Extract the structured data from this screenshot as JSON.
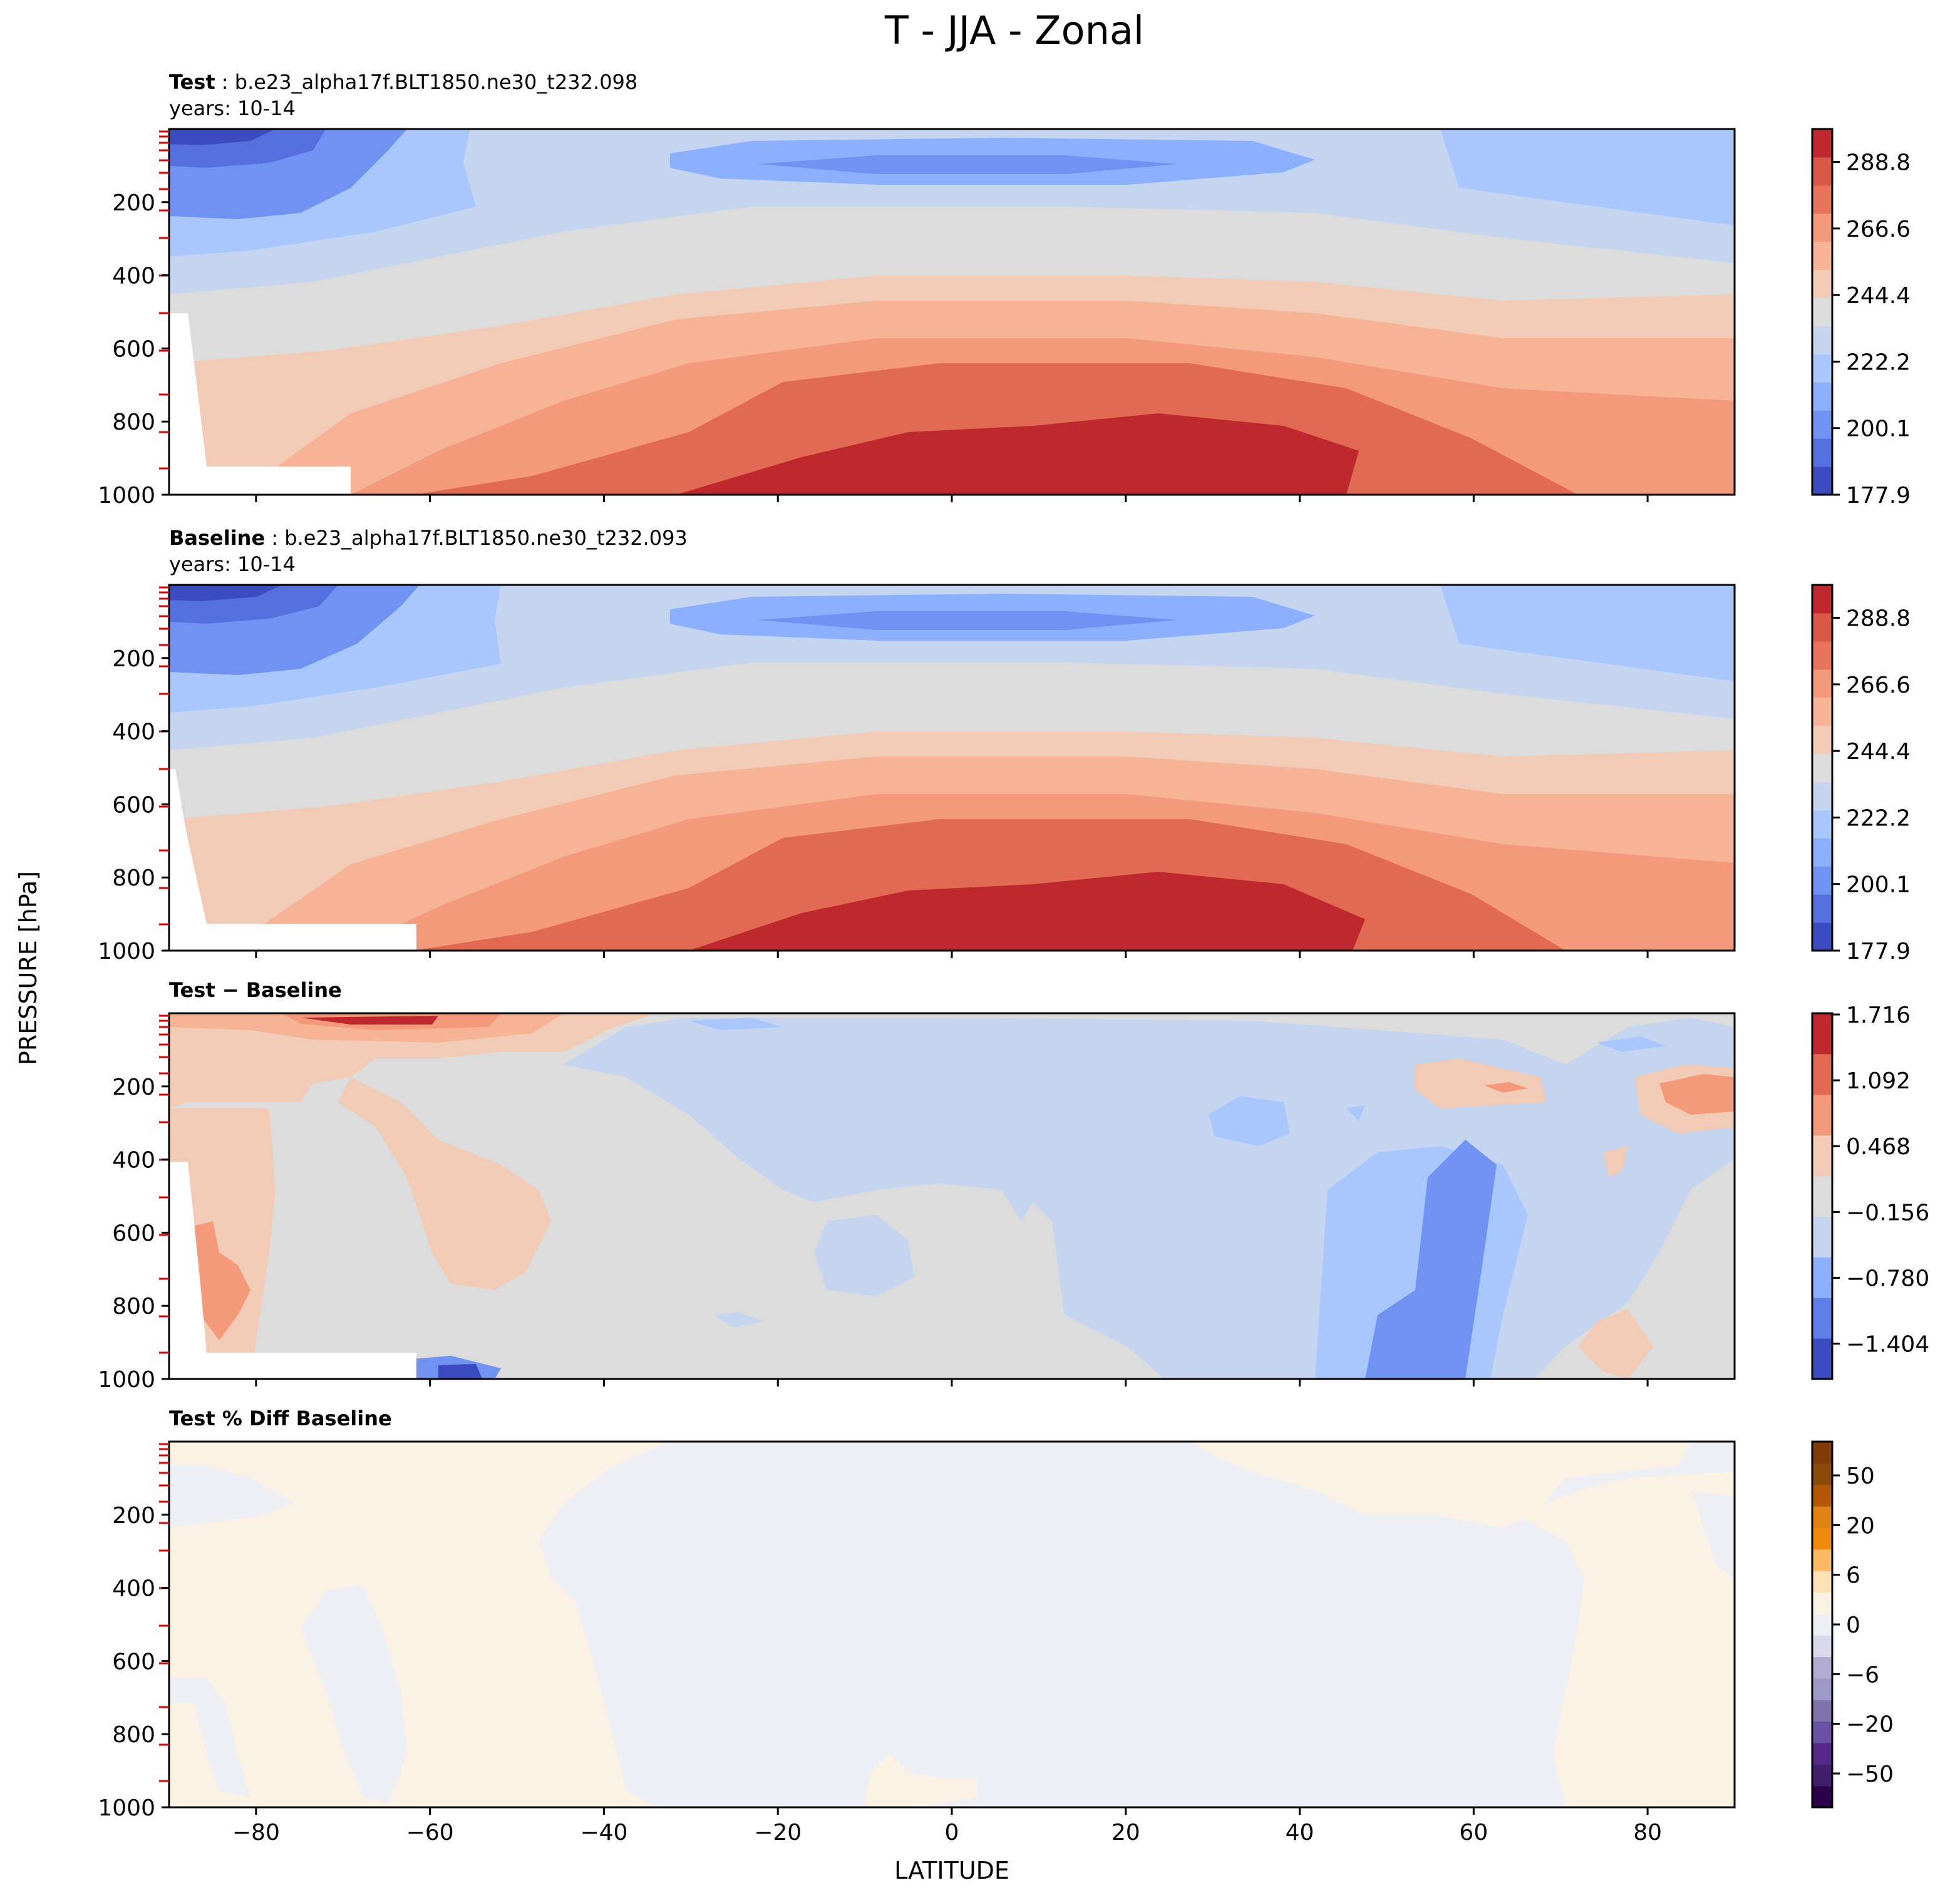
{
  "figure": {
    "title": "T - JJA - Zonal",
    "shared_xlabel": "LATITUDE",
    "shared_ylabel": "PRESSURE [hPa]"
  },
  "chart_data": [
    {
      "type": "contour",
      "panel": "test",
      "title_bold": "Test",
      "title_rest": " : b.e23_alpha17f.BLT1850.ne30_t232.098",
      "subtitle": "years: 10-14",
      "xlabel": "LATITUDE",
      "ylabel": "PRESSURE [hPa]",
      "xlim": [
        -90,
        90
      ],
      "ylim": [
        1000,
        0
      ],
      "x_ticks": [
        -80,
        -60,
        -40,
        -20,
        0,
        20,
        40,
        60,
        80
      ],
      "y_ticks": [
        200,
        400,
        600,
        800,
        1000
      ],
      "colormap": "coolwarm",
      "colorbar_ticks": [
        "177.9",
        "200.1",
        "222.2",
        "244.4",
        "266.6",
        "288.8"
      ],
      "colorbar_colors": [
        "#3b4cc0",
        "#5570de",
        "#6f92f3",
        "#8caffe",
        "#aac7fd",
        "#c5d5f0",
        "#dddcdc",
        "#f2cbb7",
        "#f7b396",
        "#f49a7b",
        "#e7745b",
        "#d95847",
        "#c0282f"
      ]
    },
    {
      "type": "contour",
      "panel": "baseline",
      "title_bold": "Baseline",
      "title_rest": " : b.e23_alpha17f.BLT1850.ne30_t232.093",
      "subtitle": "years: 10-14",
      "xlabel": "LATITUDE",
      "ylabel": "PRESSURE [hPa]",
      "xlim": [
        -90,
        90
      ],
      "ylim": [
        1000,
        0
      ],
      "x_ticks": [
        -80,
        -60,
        -40,
        -20,
        0,
        20,
        40,
        60,
        80
      ],
      "y_ticks": [
        200,
        400,
        600,
        800,
        1000
      ],
      "colormap": "coolwarm",
      "colorbar_ticks": [
        "177.9",
        "200.1",
        "222.2",
        "244.4",
        "266.6",
        "288.8"
      ],
      "colorbar_colors": [
        "#3b4cc0",
        "#5570de",
        "#6f92f3",
        "#8caffe",
        "#aac7fd",
        "#c5d5f0",
        "#dddcdc",
        "#f2cbb7",
        "#f7b396",
        "#f49a7b",
        "#e7745b",
        "#d95847",
        "#c0282f"
      ]
    },
    {
      "type": "contour",
      "panel": "diff",
      "title_bold": "Test − Baseline",
      "title_rest": "",
      "subtitle": "",
      "xlabel": "LATITUDE",
      "ylabel": "PRESSURE [hPa]",
      "xlim": [
        -90,
        90
      ],
      "ylim": [
        1000,
        0
      ],
      "x_ticks": [
        -80,
        -60,
        -40,
        -20,
        0,
        20,
        40,
        60,
        80
      ],
      "y_ticks": [
        200,
        400,
        600,
        800,
        1000
      ],
      "colormap": "coolwarm",
      "colorbar_ticks": [
        "1.716",
        "1.092",
        "0.468",
        "−0.156",
        "−0.780",
        "−1.404"
      ],
      "colorbar_colors": [
        "#3b4cc0",
        "#5f7fe8",
        "#8caffe",
        "#c5d5f0",
        "#dddcdc",
        "#f2cbb7",
        "#f49a7b",
        "#e26952",
        "#c0282f"
      ]
    },
    {
      "type": "contour",
      "panel": "pctdiff",
      "title_bold": "Test % Diff Baseline",
      "title_rest": "",
      "subtitle": "",
      "xlabel": "LATITUDE",
      "ylabel": "PRESSURE [hPa]",
      "xlim": [
        -90,
        90
      ],
      "ylim": [
        1000,
        0
      ],
      "x_ticks": [
        -80,
        -60,
        -40,
        -20,
        0,
        20,
        40,
        60,
        80
      ],
      "y_ticks": [
        200,
        400,
        600,
        800,
        1000
      ],
      "colormap": "PuOr_r",
      "colorbar_ticks": [
        "50",
        "20",
        "6",
        "0",
        "−6",
        "−20",
        "−50"
      ],
      "colorbar_colors": [
        "#2d004b",
        "#3f1f6e",
        "#542788",
        "#6a51a3",
        "#8073ac",
        "#9e9ac8",
        "#b2abd2",
        "#d8daeb",
        "#eeeff4",
        "#fbf1e4",
        "#fee0b6",
        "#fdb863",
        "#f08a0b",
        "#e08214",
        "#b35806",
        "#8a4b0a",
        "#7f3b08"
      ]
    }
  ]
}
